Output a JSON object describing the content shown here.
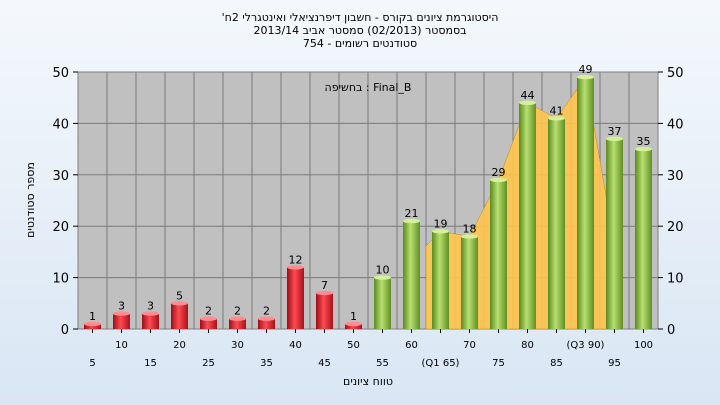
{
  "chart_data": {
    "type": "bar",
    "title_lines": [
      "'היסטוגרמת ציונים בקורס - חשבון דיפרנציאלי ואינטגרלי 2ח",
      "בסמסטר (02/2013) סמסטר אביב 2013/14",
      "סטודנטים רשומים - 754"
    ],
    "annotation": "בחשיפה : Final_B",
    "xlabel": "טווח ציונים",
    "ylabel": "מספר סטודנטים",
    "ylim": [
      0,
      50
    ],
    "yticks": [
      0,
      10,
      20,
      30,
      40,
      50
    ],
    "grid": true,
    "legend": "none",
    "categories": [
      "5",
      "10",
      "15",
      "20",
      "25",
      "30",
      "35",
      "40",
      "45",
      "50",
      "55",
      "60",
      "(Q1 65)",
      "70",
      "75",
      "80",
      "85",
      "(Q3 90)",
      "95",
      "100"
    ],
    "values": [
      1,
      3,
      3,
      5,
      2,
      2,
      2,
      12,
      7,
      1,
      10,
      21,
      19,
      18,
      29,
      44,
      41,
      49,
      37,
      35
    ],
    "data_labels": [
      "1",
      "3",
      "3",
      "5",
      "2",
      "2",
      "2",
      "12",
      "7",
      "1",
      "10",
      "21",
      "19",
      "18",
      "29",
      "44",
      "41",
      "49",
      "37",
      "35"
    ],
    "colors": {
      "fail": "#e0202a",
      "pass": "#8fc440",
      "band": "#ffc44d",
      "plot_bg": "#c0c0c0"
    },
    "pass_threshold_index": 10,
    "band": {
      "from_index": 12,
      "to_index": 17
    }
  }
}
